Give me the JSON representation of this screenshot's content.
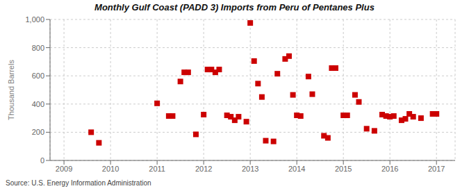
{
  "chart_data": {
    "type": "scatter",
    "title": "Monthly Gulf Coast (PADD 3) Imports from Peru of Pentanes Plus",
    "ylabel": "Thousand Barrels",
    "annotations": [
      "Source: U.S. Energy Information Administration"
    ],
    "color": "#cc0000",
    "marker": "square",
    "grid": true,
    "xlim": [
      2008.7,
      2017.4
    ],
    "xticks": [
      2009,
      2010,
      2011,
      2012,
      2013,
      2014,
      2015,
      2016,
      2017
    ],
    "ylim": [
      0,
      1000
    ],
    "yticks": [
      0,
      200,
      400,
      600,
      800,
      {
        "value": 1000,
        "label": "1,000"
      }
    ],
    "x": [
      2009.583,
      2009.75,
      2011.0,
      2011.25,
      2011.333,
      2011.5,
      2011.583,
      2011.667,
      2011.833,
      2012.0,
      2012.083,
      2012.167,
      2012.25,
      2012.333,
      2012.5,
      2012.583,
      2012.667,
      2012.75,
      2012.917,
      2013.0,
      2013.083,
      2013.167,
      2013.25,
      2013.333,
      2013.5,
      2013.583,
      2013.75,
      2013.833,
      2013.917,
      2014.0,
      2014.083,
      2014.25,
      2014.333,
      2014.583,
      2014.667,
      2014.75,
      2014.833,
      2015.0,
      2015.083,
      2015.25,
      2015.333,
      2015.5,
      2015.667,
      2015.833,
      2015.917,
      2016.0,
      2016.083,
      2016.25,
      2016.333,
      2016.417,
      2016.5,
      2016.667,
      2016.917,
      2017.0
    ],
    "values": [
      200,
      125,
      405,
      315,
      315,
      560,
      625,
      625,
      185,
      325,
      645,
      645,
      625,
      645,
      320,
      310,
      285,
      310,
      275,
      975,
      705,
      545,
      450,
      140,
      135,
      615,
      720,
      740,
      465,
      320,
      315,
      595,
      470,
      175,
      160,
      655,
      655,
      320,
      320,
      465,
      415,
      225,
      210,
      325,
      315,
      310,
      315,
      285,
      295,
      330,
      310,
      300,
      330,
      330
    ]
  }
}
